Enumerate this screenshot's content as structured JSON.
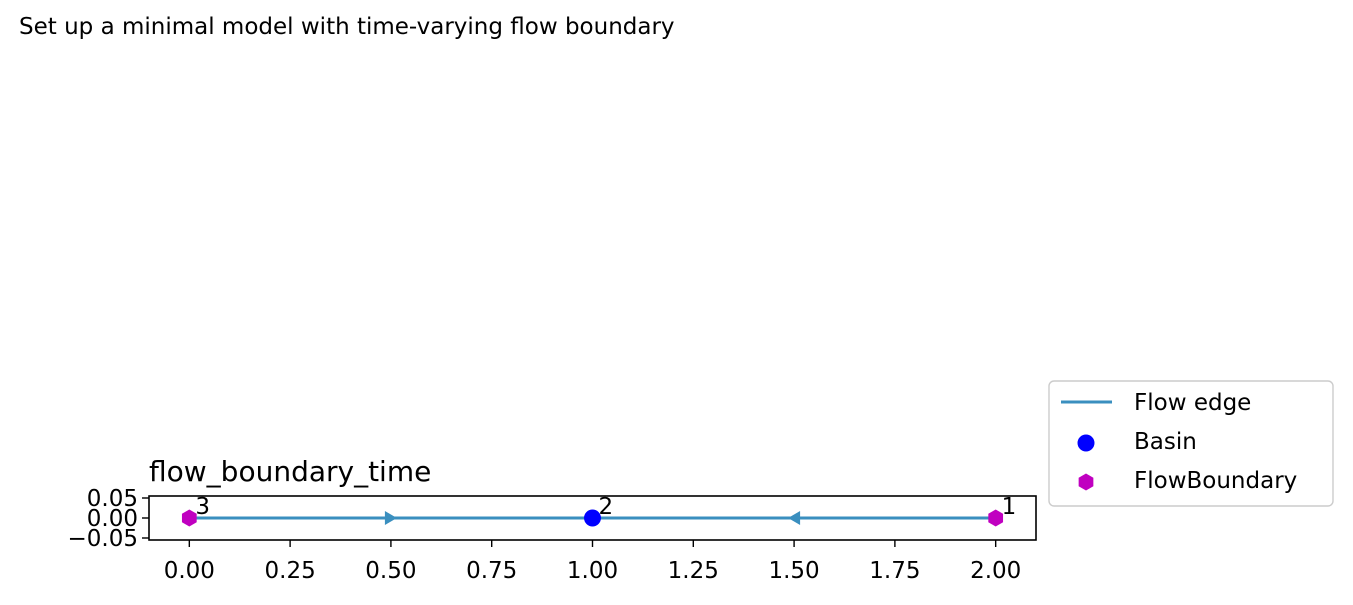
{
  "page_text": "Set up a minimal model with time-varying flow boundary",
  "chart_data": {
    "type": "scatter",
    "title": "flow_boundary_time",
    "xlabel": "",
    "ylabel": "",
    "xlim": [
      -0.1,
      2.1
    ],
    "ylim": [
      -0.055,
      0.055
    ],
    "x_ticks": [
      {
        "value": 0.0,
        "label": "0.00"
      },
      {
        "value": 0.25,
        "label": "0.25"
      },
      {
        "value": 0.5,
        "label": "0.50"
      },
      {
        "value": 0.75,
        "label": "0.75"
      },
      {
        "value": 1.0,
        "label": "1.00"
      },
      {
        "value": 1.25,
        "label": "1.25"
      },
      {
        "value": 1.5,
        "label": "1.50"
      },
      {
        "value": 1.75,
        "label": "1.75"
      },
      {
        "value": 2.0,
        "label": "2.00"
      }
    ],
    "y_ticks": [
      {
        "value": 0.05,
        "label": "0.05"
      },
      {
        "value": 0.0,
        "label": "0.00"
      },
      {
        "value": -0.05,
        "label": "−0.05"
      }
    ],
    "grid": false,
    "legend_position": "outside-right",
    "series": [
      {
        "name": "Flow edge",
        "kind": "edge",
        "color": "#3a8fbf",
        "edges": [
          {
            "from": [
              0,
              0
            ],
            "to": [
              1,
              0
            ]
          },
          {
            "from": [
              2,
              0
            ],
            "to": [
              1,
              0
            ]
          }
        ]
      },
      {
        "name": "Basin",
        "kind": "node",
        "marker": "circle",
        "color": "#0000ff",
        "points": [
          {
            "x": 1,
            "y": 0,
            "label": "2"
          }
        ]
      },
      {
        "name": "FlowBoundary",
        "kind": "node",
        "marker": "hexagon",
        "color": "#c000c0",
        "points": [
          {
            "x": 2,
            "y": 0,
            "label": "1"
          },
          {
            "x": 0,
            "y": 0,
            "label": "3"
          }
        ]
      }
    ]
  }
}
